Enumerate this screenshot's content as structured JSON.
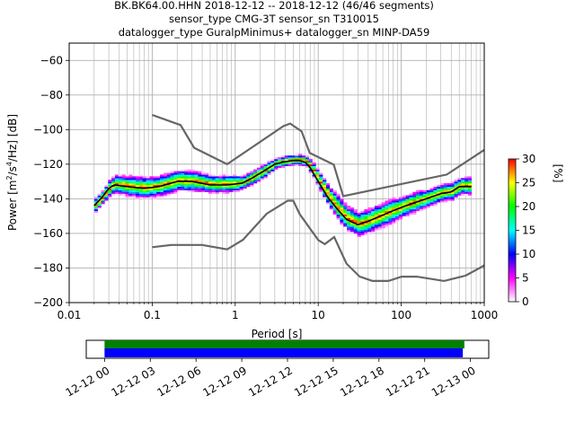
{
  "title_lines": [
    "BK.BK64.00.HHN   2018-12-12 -- 2018-12-12  (46/46 segments)",
    "sensor_type CMG-3T sensor_sn T310015",
    "datalogger_type GuralpMinimus+ datalogger_sn MINP-DA59"
  ],
  "chart_data": [
    {
      "type": "heatmap",
      "xlabel": "Period [s]",
      "ylabel_parts": [
        "Power [m",
        "2",
        "/s",
        "4",
        "/Hz] [dB]"
      ],
      "xscale": "log",
      "xlim": [
        0.01,
        1000
      ],
      "ylim": [
        -200,
        -50
      ],
      "x_ticks": [
        {
          "value": 0.01,
          "label": "0.01"
        },
        {
          "value": 0.1,
          "label": "0.1"
        },
        {
          "value": 1,
          "label": "1"
        },
        {
          "value": 10,
          "label": "10"
        },
        {
          "value": 100,
          "label": "100"
        },
        {
          "value": 1000,
          "label": "1000"
        }
      ],
      "y_ticks": [
        {
          "value": -60,
          "label": "−60"
        },
        {
          "value": -80,
          "label": "−80"
        },
        {
          "value": -100,
          "label": "−100"
        },
        {
          "value": -120,
          "label": "−120"
        },
        {
          "value": -140,
          "label": "−140"
        },
        {
          "value": -160,
          "label": "−160"
        },
        {
          "value": -180,
          "label": "−180"
        },
        {
          "value": -200,
          "label": "−200"
        }
      ],
      "grid": true,
      "colorbar": {
        "label": "[%]",
        "range": [
          0,
          30
        ],
        "ticks": [
          {
            "value": 0,
            "label": "0"
          },
          {
            "value": 5,
            "label": "5"
          },
          {
            "value": 10,
            "label": "10"
          },
          {
            "value": 15,
            "label": "15"
          },
          {
            "value": 20,
            "label": "20"
          },
          {
            "value": 25,
            "label": "25"
          },
          {
            "value": 30,
            "label": "30"
          }
        ],
        "colormap": [
          "#ffffff",
          "#ff00ff",
          "#0000ff",
          "#00ffff",
          "#00ff00",
          "#ffff00",
          "#ff0000"
        ]
      },
      "noise_models": {
        "color": "#666666",
        "high": [
          [
            0.1,
            -91.5
          ],
          [
            0.22,
            -97.4
          ],
          [
            0.32,
            -110.5
          ],
          [
            0.8,
            -120
          ],
          [
            3.8,
            -98
          ],
          [
            4.6,
            -96.5
          ],
          [
            6.3,
            -101
          ],
          [
            7.9,
            -113.5
          ],
          [
            15.4,
            -120.3
          ],
          [
            20,
            -138.5
          ],
          [
            354,
            -126
          ],
          [
            10000,
            -80
          ]
        ],
        "low": [
          [
            0.1,
            -168
          ],
          [
            0.17,
            -166.7
          ],
          [
            0.4,
            -166.7
          ],
          [
            0.8,
            -169.2
          ],
          [
            1.24,
            -163.7
          ],
          [
            2.4,
            -148.6
          ],
          [
            4.3,
            -141.1
          ],
          [
            5,
            -141.1
          ],
          [
            6,
            -149
          ],
          [
            10,
            -163.8
          ],
          [
            12,
            -166.2
          ],
          [
            15.6,
            -162.1
          ],
          [
            21.9,
            -177.5
          ],
          [
            31.6,
            -185
          ],
          [
            45,
            -187.5
          ],
          [
            70,
            -187.5
          ],
          [
            101,
            -185
          ],
          [
            154,
            -185
          ],
          [
            328,
            -187.5
          ],
          [
            600,
            -184.4
          ],
          [
            10000,
            -151.9
          ]
        ]
      },
      "psd_mean": {
        "color": "#000000",
        "points": [
          [
            0.02,
            -144
          ],
          [
            0.025,
            -139
          ],
          [
            0.03,
            -134
          ],
          [
            0.035,
            -132
          ],
          [
            0.05,
            -133
          ],
          [
            0.08,
            -134
          ],
          [
            0.12,
            -133
          ],
          [
            0.2,
            -130
          ],
          [
            0.3,
            -130
          ],
          [
            0.5,
            -132
          ],
          [
            0.8,
            -132
          ],
          [
            1.2,
            -131
          ],
          [
            1.6,
            -128
          ],
          [
            2.2,
            -124
          ],
          [
            3,
            -120
          ],
          [
            4,
            -118.5
          ],
          [
            5,
            -118
          ],
          [
            6,
            -118
          ],
          [
            7,
            -119
          ],
          [
            8,
            -122
          ],
          [
            10,
            -130
          ],
          [
            13,
            -139
          ],
          [
            17,
            -146
          ],
          [
            22,
            -152
          ],
          [
            30,
            -155
          ],
          [
            40,
            -153
          ],
          [
            50,
            -151
          ],
          [
            70,
            -148
          ],
          [
            100,
            -145
          ],
          [
            150,
            -142
          ],
          [
            200,
            -140
          ],
          [
            300,
            -137
          ],
          [
            400,
            -136
          ],
          [
            500,
            -133
          ],
          [
            700,
            -133
          ]
        ]
      },
      "psd_band_points": [
        [
          0.02,
          -144
        ],
        [
          0.025,
          -139
        ],
        [
          0.03,
          -134
        ],
        [
          0.035,
          -132
        ],
        [
          0.05,
          -133
        ],
        [
          0.08,
          -134
        ],
        [
          0.12,
          -133
        ],
        [
          0.2,
          -130
        ],
        [
          0.3,
          -130
        ],
        [
          0.5,
          -132
        ],
        [
          0.8,
          -132
        ],
        [
          1.2,
          -131
        ],
        [
          1.6,
          -128
        ],
        [
          2.2,
          -124
        ],
        [
          3,
          -120
        ],
        [
          4,
          -118.5
        ],
        [
          5,
          -118
        ],
        [
          6,
          -118
        ],
        [
          7,
          -119
        ],
        [
          8,
          -122
        ],
        [
          10,
          -130
        ],
        [
          13,
          -139
        ],
        [
          17,
          -146
        ],
        [
          22,
          -152
        ],
        [
          30,
          -155
        ],
        [
          40,
          -153
        ],
        [
          50,
          -151
        ],
        [
          70,
          -148
        ],
        [
          100,
          -145
        ],
        [
          150,
          -142
        ],
        [
          200,
          -140
        ],
        [
          300,
          -137
        ],
        [
          400,
          -136
        ],
        [
          500,
          -133
        ],
        [
          700,
          -133
        ]
      ],
      "psd_band_halfwidth_db": [
        4,
        4,
        5,
        5,
        6,
        6,
        6,
        6,
        6,
        5,
        5,
        4,
        4,
        4,
        3,
        3,
        3,
        3,
        3,
        4,
        5,
        6,
        7,
        7,
        7,
        7,
        7,
        7,
        6,
        6,
        5,
        5,
        5,
        5,
        5
      ]
    },
    {
      "type": "timeline",
      "x_ticks": [
        {
          "value": 0,
          "label": "12-12 00"
        },
        {
          "value": 3,
          "label": "12-12 03"
        },
        {
          "value": 6,
          "label": "12-12 06"
        },
        {
          "value": 9,
          "label": "12-12 09"
        },
        {
          "value": 12,
          "label": "12-12 12"
        },
        {
          "value": 15,
          "label": "12-12 15"
        },
        {
          "value": 18,
          "label": "12-12 18"
        },
        {
          "value": 21,
          "label": "12-12 21"
        },
        {
          "value": 24,
          "label": "12-13 00"
        }
      ],
      "xlim_hours": [
        -1.2,
        25.2
      ],
      "bars": [
        {
          "color": "#008000",
          "start": 0,
          "end": 23.6
        },
        {
          "color": "#0000ff",
          "start": 0,
          "end": 23.5
        }
      ]
    }
  ]
}
